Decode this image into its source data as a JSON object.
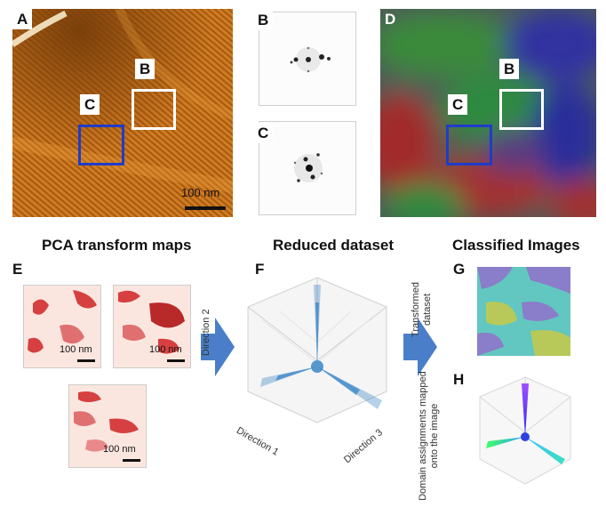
{
  "panels": {
    "a": {
      "letter": "A",
      "box_b": "B",
      "box_c": "C",
      "scale": "100 nm"
    },
    "b": {
      "letter": "B"
    },
    "c": {
      "letter": "C"
    },
    "d": {
      "letter": "D",
      "box_b": "B",
      "box_c": "C"
    },
    "e": {
      "letter": "E",
      "scale1": "100 nm",
      "scale2": "100 nm",
      "scale3": "100 nm"
    },
    "f": {
      "letter": "F",
      "axis1": "Direction 1",
      "axis2": "Direction 2",
      "axis3": "Direction 3"
    },
    "g": {
      "letter": "G",
      "side": "Transformed dataset"
    },
    "h": {
      "letter": "H",
      "side": "Domain assignments mapped onto the image"
    }
  },
  "titles": {
    "pca": "PCA transform maps",
    "reduced": "Reduced dataset",
    "classified": "Classified Images"
  },
  "colors": {
    "box_b": "#ffffff",
    "box_c": "#1f3cc8",
    "arrow": "#4a7ec9",
    "afm_base": "#c8761c"
  }
}
